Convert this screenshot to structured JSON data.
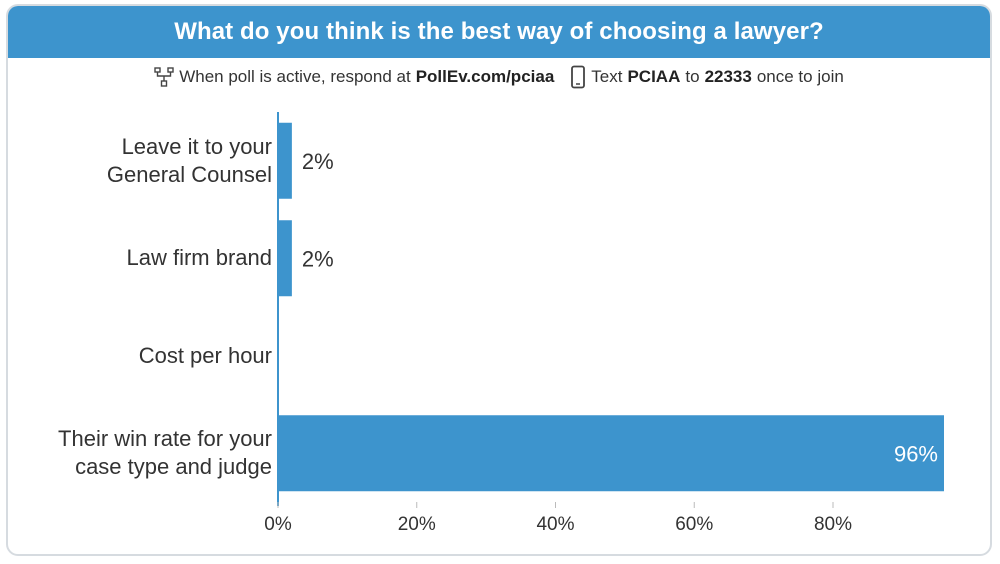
{
  "header": {
    "title": "What do you think is the best way of choosing a lawyer?"
  },
  "instructions": {
    "web_prefix": "When poll is active, respond at",
    "web_url": "PollEv.com/pciaa",
    "text_prefix": "Text",
    "text_code": "PCIAA",
    "text_mid": "to",
    "text_number": "22333",
    "text_suffix": "once to join",
    "web_icon": "network-icon",
    "phone_icon": "phone-icon"
  },
  "colors": {
    "title_bg": "#3d94cd",
    "bar": "#3d94cd",
    "axis": "#3d94cd"
  },
  "chart_data": {
    "type": "bar",
    "orientation": "horizontal",
    "categories": [
      [
        "Leave it to your",
        "General Counsel"
      ],
      [
        "Law firm brand"
      ],
      [
        "Cost per hour"
      ],
      [
        "Their win rate for your",
        "case type and judge"
      ]
    ],
    "values": [
      2,
      2,
      0,
      96
    ],
    "value_labels": [
      "2%",
      "2%",
      "",
      "96%"
    ],
    "xlim": [
      0,
      96
    ],
    "xticks": [
      0,
      20,
      40,
      60,
      80
    ],
    "xtick_labels": [
      "0%",
      "20%",
      "40%",
      "60%",
      "80%"
    ],
    "grid": false
  }
}
